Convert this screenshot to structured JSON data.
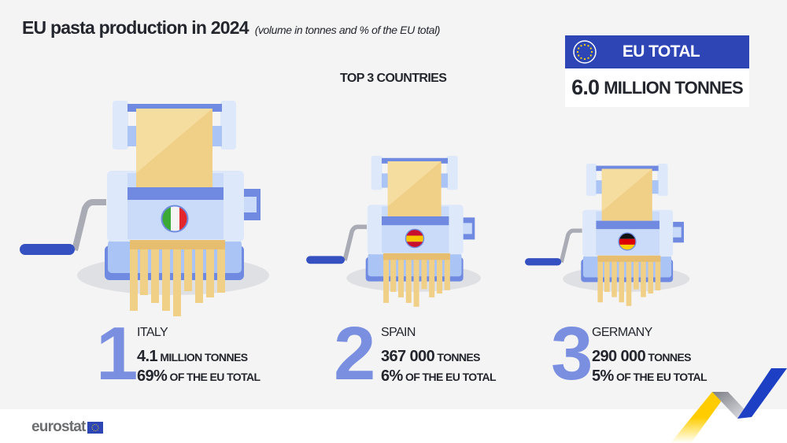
{
  "title": "EU pasta production in 2024",
  "subtitle": "(volume in tonnes and % of the EU total)",
  "section_label": "TOP 3 COUNTRIES",
  "eu_total": {
    "label": "EU TOTAL",
    "value": "6.0",
    "unit": "MILLION TONNES",
    "icon": "eu-flag-icon"
  },
  "countries": [
    {
      "rank": "1",
      "name": "ITALY",
      "volume": "4.1",
      "volume_unit": "MILLION TONNES",
      "share": "69%",
      "share_label": "OF THE EU TOTAL",
      "flag": [
        "#3aa935",
        "#f4f4f4",
        "#e3262b"
      ],
      "flag_dir": "vertical"
    },
    {
      "rank": "2",
      "name": "SPAIN",
      "volume": "367 000",
      "volume_unit": "TONNES",
      "share": "6%",
      "share_label": "OF THE EU TOTAL",
      "flag": [
        "#c8102e",
        "#f6c400",
        "#c8102e"
      ],
      "flag_dir": "horizontal"
    },
    {
      "rank": "3",
      "name": "GERMANY",
      "volume": "290 000",
      "volume_unit": "TONNES",
      "share": "5%",
      "share_label": "OF THE EU TOTAL",
      "flag": [
        "#111111",
        "#dd0000",
        "#ffce00"
      ],
      "flag_dir": "horizontal"
    }
  ],
  "footer": {
    "logo": "eurostat"
  },
  "colors": {
    "accent": "#7b8fe0",
    "eu_blue": "#2d45b5",
    "pasta": "#f0cf87",
    "machine": "#c9dbf8"
  }
}
